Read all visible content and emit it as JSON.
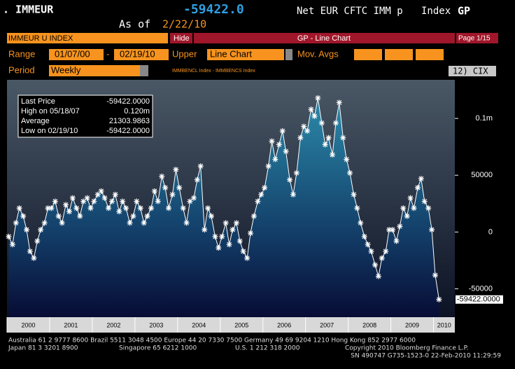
{
  "header": {
    "ticker": ". IMMEUR",
    "price": "-59422.0",
    "description": "Net EUR CFTC IMM p",
    "index": "Index",
    "function": "GP",
    "as_of_label": "As of",
    "as_of_date": "2/22/10"
  },
  "toolbar": {
    "security": "IMMEUR U INDEX",
    "hide": "Hide",
    "screen_title": "GP - Line Chart",
    "page": "Page 1/15",
    "range_label": "Range",
    "start_date": "01/07/00",
    "date_separator": "-",
    "end_date": "02/19/10",
    "upper_label": "Upper",
    "upper_value": "Line Chart",
    "mov_avgs_label": "Mov. Avgs",
    "period_label": "Period",
    "period_value": "Weekly",
    "indices": "IMMBENCL Index - IMMBENCS Index",
    "cix": "12) CIX"
  },
  "chart_data": {
    "type": "line",
    "color": "#ffffff",
    "x": [
      2000.04,
      2000.13,
      2000.21,
      2000.29,
      2000.38,
      2000.46,
      2000.54,
      2000.63,
      2000.71,
      2000.79,
      2000.88,
      2000.96,
      2001.04,
      2001.13,
      2001.21,
      2001.29,
      2001.38,
      2001.46,
      2001.54,
      2001.63,
      2001.71,
      2001.79,
      2001.88,
      2001.96,
      2002.04,
      2002.13,
      2002.21,
      2002.29,
      2002.38,
      2002.46,
      2002.54,
      2002.63,
      2002.71,
      2002.79,
      2002.88,
      2002.96,
      2003.04,
      2003.13,
      2003.21,
      2003.29,
      2003.38,
      2003.46,
      2003.54,
      2003.63,
      2003.71,
      2003.79,
      2003.88,
      2003.96,
      2004.04,
      2004.13,
      2004.21,
      2004.29,
      2004.38,
      2004.46,
      2004.54,
      2004.63,
      2004.71,
      2004.79,
      2004.88,
      2004.96,
      2005.04,
      2005.13,
      2005.21,
      2005.29,
      2005.38,
      2005.46,
      2005.54,
      2005.63,
      2005.71,
      2005.79,
      2005.88,
      2005.96,
      2006.04,
      2006.13,
      2006.21,
      2006.29,
      2006.38,
      2006.46,
      2006.54,
      2006.63,
      2006.71,
      2006.79,
      2006.88,
      2006.96,
      2007.04,
      2007.13,
      2007.21,
      2007.29,
      2007.38,
      2007.46,
      2007.54,
      2007.63,
      2007.71,
      2007.79,
      2007.88,
      2007.96,
      2008.04,
      2008.13,
      2008.21,
      2008.29,
      2008.38,
      2008.46,
      2008.54,
      2008.63,
      2008.71,
      2008.79,
      2008.88,
      2008.96,
      2009.04,
      2009.13,
      2009.21,
      2009.29,
      2009.38,
      2009.46,
      2009.54,
      2009.63,
      2009.71,
      2009.79,
      2009.88,
      2009.96,
      2010.04,
      2010.13
    ],
    "values": [
      -4000,
      -11000,
      8000,
      21000,
      14000,
      2000,
      -17000,
      -23000,
      -8000,
      2000,
      8000,
      21000,
      21000,
      27000,
      14000,
      8000,
      24000,
      18000,
      30000,
      21000,
      14000,
      27000,
      30000,
      21000,
      27000,
      33000,
      36000,
      30000,
      21000,
      27000,
      33000,
      18000,
      27000,
      21000,
      8000,
      14000,
      27000,
      21000,
      8000,
      14000,
      21000,
      36000,
      27000,
      49000,
      39000,
      21000,
      33000,
      55000,
      39000,
      21000,
      8000,
      27000,
      30000,
      46000,
      58000,
      2000,
      21000,
      14000,
      -4000,
      -14000,
      -4000,
      8000,
      -11000,
      2000,
      8000,
      -8000,
      -17000,
      -23000,
      -1000,
      14000,
      27000,
      33000,
      39000,
      58000,
      80000,
      64000,
      77000,
      89000,
      71000,
      46000,
      33000,
      52000,
      83000,
      93000,
      89000,
      108000,
      102000,
      118000,
      96000,
      77000,
      83000,
      68000,
      96000,
      114000,
      83000,
      64000,
      52000,
      33000,
      21000,
      8000,
      -4000,
      -11000,
      -17000,
      -29000,
      -39000,
      -23000,
      -17000,
      2000,
      2000,
      -8000,
      5000,
      21000,
      14000,
      30000,
      21000,
      39000,
      47000,
      27000,
      21000,
      2000,
      -38000,
      -59422
    ],
    "xlim": [
      2000,
      2010.5
    ],
    "xticks": [
      2000,
      2001,
      2002,
      2003,
      2004,
      2005,
      2006,
      2007,
      2008,
      2009,
      2010
    ],
    "ylim": [
      -75000,
      134000
    ],
    "yticks": [
      {
        "value": 100000,
        "label": "0.1m"
      },
      50000,
      0,
      -50000
    ],
    "end_label": "-59422.0000",
    "stats": [
      {
        "label": "Last Price",
        "value": "-59422.0000"
      },
      {
        "label": "High on 05/18/07",
        "value": "0.120m"
      },
      {
        "label": "Average",
        "value": "21303.9863"
      },
      {
        "label": "Low on 02/19/10",
        "value": "-59422.0000"
      }
    ]
  },
  "footer": {
    "line1": "Australia 61 2 9777 8600 Brazil 5511 3048 4500 Europe 44 20 7330 7500 Germany 49 69 9204 1210 Hong Kong 852 2977 6000",
    "japan": "Japan 81 3 3201 8900",
    "singapore": "Singapore 65 6212 1000",
    "us": "U.S. 1 212 318 2000",
    "copyright": "Copyright 2010 Bloomberg Finance L.P.",
    "line3": "SN 490747 G735-1523-0 22-Feb-2010 11:29:59"
  }
}
